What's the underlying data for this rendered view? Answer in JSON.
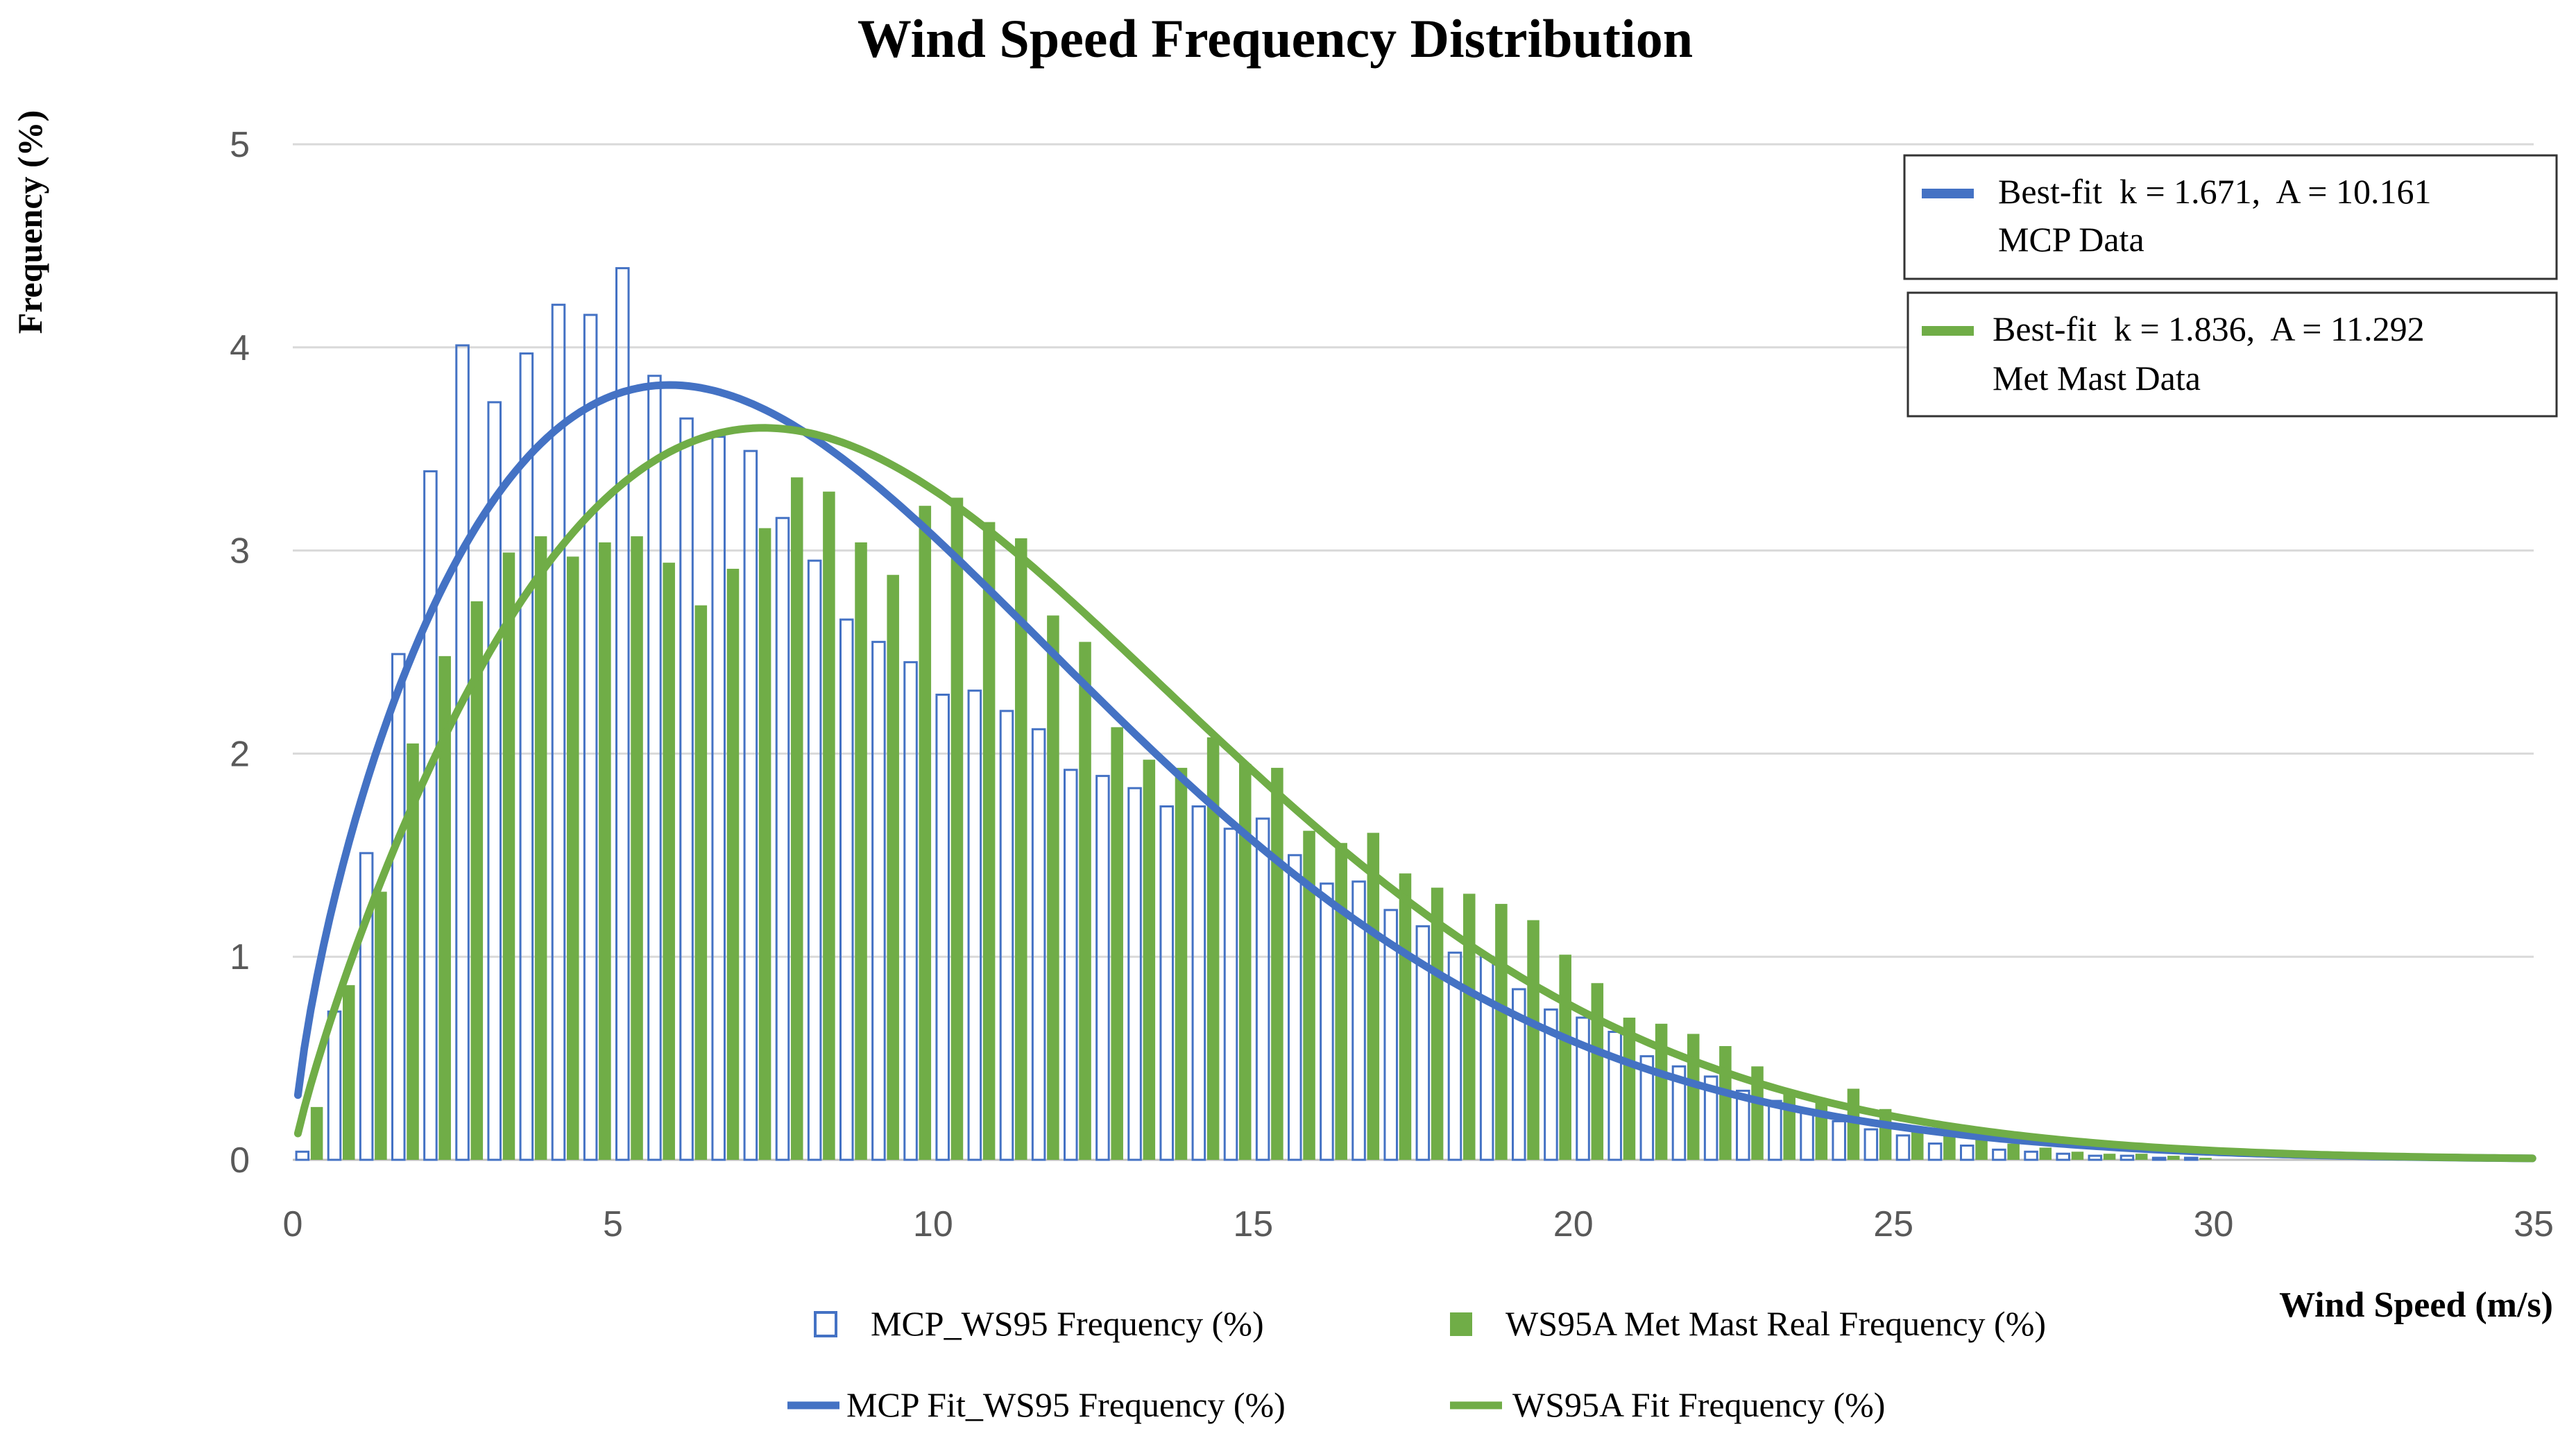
{
  "chart_data": {
    "type": "bar",
    "title": "Wind Speed Frequency Distribution",
    "xlabel": "Wind Speed (m/s)",
    "ylabel": "Frequency (%)",
    "xlim": [
      0,
      35
    ],
    "ylim": [
      0,
      5
    ],
    "x_ticks": [
      0,
      5,
      10,
      15,
      20,
      25,
      30,
      35
    ],
    "y_ticks": [
      0,
      1,
      2,
      3,
      4,
      5
    ],
    "grid": "horizontal",
    "legend_position": "bottom",
    "bin_width": 0.5,
    "series": [
      {
        "name": "MCP_WS95 Frequency (%)",
        "kind": "bar-outline",
        "color": "#4472C4",
        "x": [
          0.25,
          0.75,
          1.25,
          1.75,
          2.25,
          2.75,
          3.25,
          3.75,
          4.25,
          4.75,
          5.25,
          5.75,
          6.25,
          6.75,
          7.25,
          7.75,
          8.25,
          8.75,
          9.25,
          9.75,
          10.25,
          10.75,
          11.25,
          11.75,
          12.25,
          12.75,
          13.25,
          13.75,
          14.25,
          14.75,
          15.25,
          15.75,
          16.25,
          16.75,
          17.25,
          17.75,
          18.25,
          18.75,
          19.25,
          19.75,
          20.25,
          20.75,
          21.25,
          21.75,
          22.25,
          22.75,
          23.25,
          23.75,
          24.25,
          24.75,
          25.25,
          25.75,
          26.25,
          26.75,
          27.25,
          27.75,
          28.25,
          28.75,
          29.25,
          29.75
        ],
        "values": [
          0.04,
          0.73,
          1.51,
          2.49,
          3.39,
          4.01,
          3.73,
          3.97,
          4.21,
          4.16,
          4.39,
          3.86,
          3.65,
          3.56,
          3.49,
          3.16,
          2.95,
          2.66,
          2.55,
          2.45,
          2.29,
          2.31,
          2.21,
          2.12,
          1.92,
          1.89,
          1.83,
          1.74,
          1.74,
          1.63,
          1.68,
          1.5,
          1.36,
          1.37,
          1.23,
          1.15,
          1.02,
          1.0,
          0.84,
          0.74,
          0.7,
          0.63,
          0.51,
          0.46,
          0.41,
          0.34,
          0.29,
          0.24,
          0.19,
          0.15,
          0.12,
          0.08,
          0.07,
          0.05,
          0.04,
          0.03,
          0.02,
          0.02,
          0.01,
          0.01
        ]
      },
      {
        "name": "WS95A Met Mast Real Frequency (%)",
        "kind": "bar",
        "color": "#70AD47",
        "x": [
          0.25,
          0.75,
          1.25,
          1.75,
          2.25,
          2.75,
          3.25,
          3.75,
          4.25,
          4.75,
          5.25,
          5.75,
          6.25,
          6.75,
          7.25,
          7.75,
          8.25,
          8.75,
          9.25,
          9.75,
          10.25,
          10.75,
          11.25,
          11.75,
          12.25,
          12.75,
          13.25,
          13.75,
          14.25,
          14.75,
          15.25,
          15.75,
          16.25,
          16.75,
          17.25,
          17.75,
          18.25,
          18.75,
          19.25,
          19.75,
          20.25,
          20.75,
          21.25,
          21.75,
          22.25,
          22.75,
          23.25,
          23.75,
          24.25,
          24.75,
          25.25,
          25.75,
          26.25,
          26.75,
          27.25,
          27.75,
          28.25,
          28.75,
          29.25,
          29.75
        ],
        "values": [
          0.26,
          0.86,
          1.32,
          2.05,
          2.48,
          2.75,
          2.99,
          3.07,
          2.97,
          3.04,
          3.07,
          2.94,
          2.73,
          2.91,
          3.11,
          3.36,
          3.29,
          3.04,
          2.88,
          3.22,
          3.26,
          3.14,
          3.06,
          2.68,
          2.55,
          2.13,
          1.97,
          1.93,
          2.08,
          1.95,
          1.93,
          1.62,
          1.56,
          1.61,
          1.41,
          1.34,
          1.31,
          1.26,
          1.18,
          1.01,
          0.87,
          0.7,
          0.67,
          0.62,
          0.56,
          0.46,
          0.33,
          0.3,
          0.35,
          0.25,
          0.15,
          0.12,
          0.1,
          0.08,
          0.06,
          0.04,
          0.03,
          0.03,
          0.02,
          0.01
        ]
      },
      {
        "name": "MCP Fit_WS95 Frequency (%)",
        "kind": "line",
        "color": "#4472C4",
        "weibull_k": 1.671,
        "weibull_A": 10.161
      },
      {
        "name": "WS95A Fit Frequency (%)",
        "kind": "line",
        "color": "#70AD47",
        "weibull_k": 1.836,
        "weibull_A": 11.292
      }
    ],
    "annotations": [
      {
        "line1": "Best-fit  k = 1.671,  A = 10.161",
        "line2": "MCP Data",
        "color": "#4472C4"
      },
      {
        "line1": "Best-fit  k = 1.836,  A = 11.292",
        "line2": "Met Mast Data",
        "color": "#70AD47"
      }
    ]
  }
}
